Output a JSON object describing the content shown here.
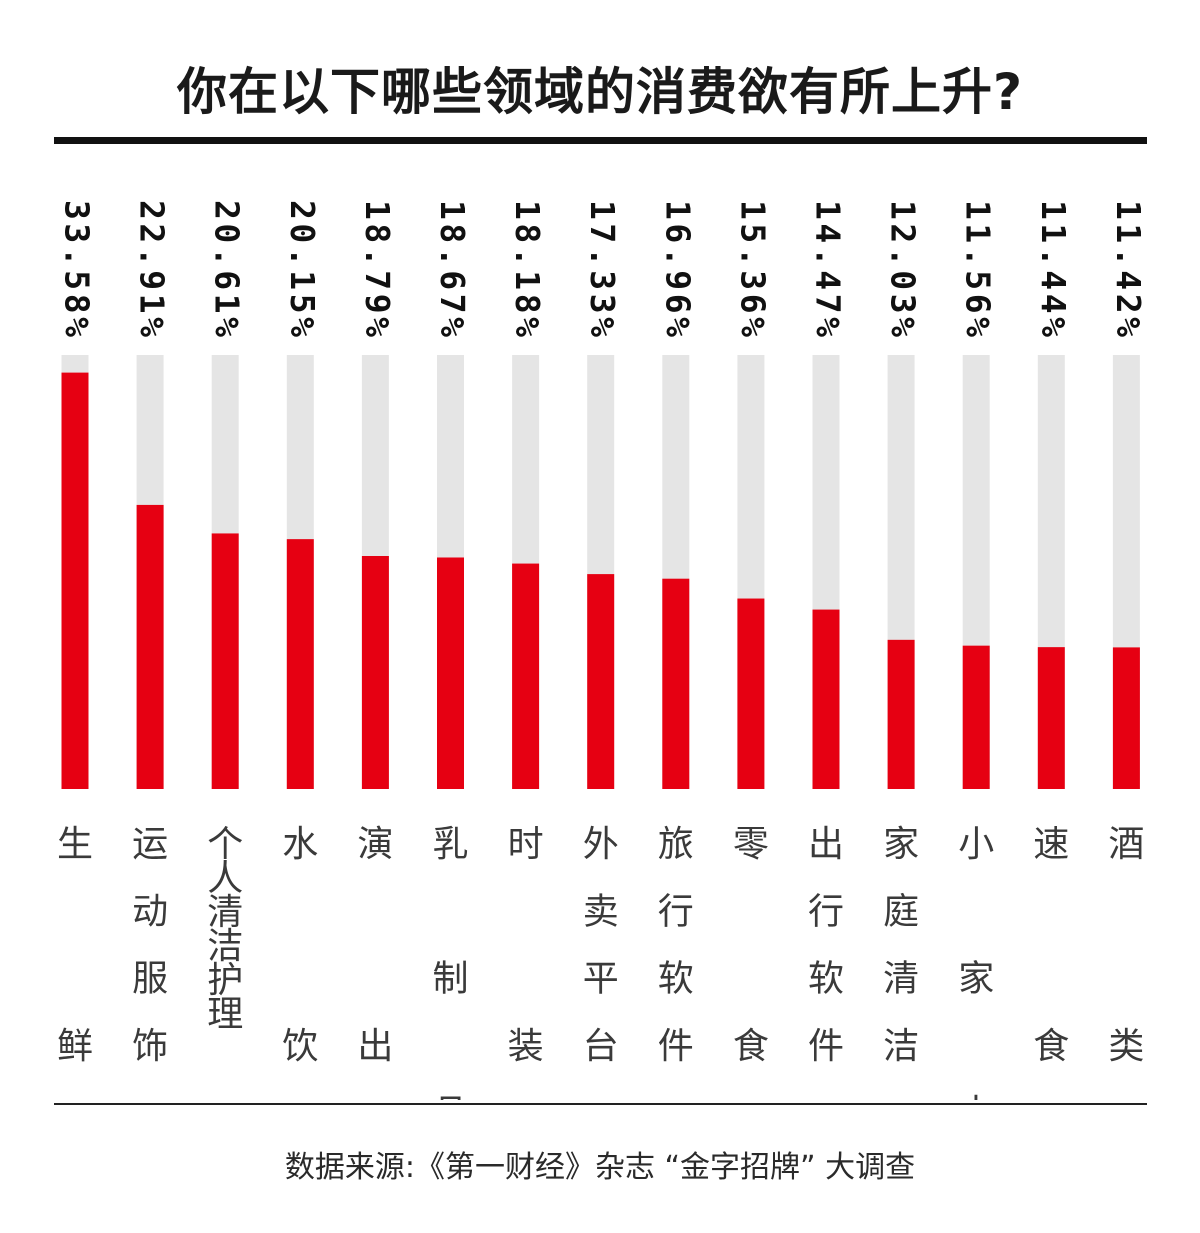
{
  "title": "你在以下哪些领域的消费欲有所上升?",
  "source": "数据来源:《第一财经》杂志 “金字招牌” 大调查",
  "colors": {
    "bar": "#e60012",
    "track": "#e5e5e5",
    "rule": "#111111"
  },
  "chart_data": {
    "type": "bar",
    "orientation": "vertical",
    "title": "你在以下哪些领域的消费欲有所上升?",
    "unit": "%",
    "ylim": [
      0,
      35
    ],
    "grid": false,
    "legend": "none",
    "categories": [
      "生鲜",
      "运动服饰",
      "个人清洁护理",
      "水饮",
      "演出",
      "乳制品",
      "时装",
      "外卖平台",
      "旅行软件",
      "零食",
      "出行软件",
      "家庭清洁",
      "小家电",
      "速食",
      "酒类"
    ],
    "category_lines": [
      [
        "生",
        "",
        "",
        "鲜"
      ],
      [
        "运",
        "动",
        "服",
        "饰"
      ],
      [
        "个",
        "人",
        "清",
        "洁",
        "护",
        "理"
      ],
      [
        "水",
        "",
        "",
        "饮"
      ],
      [
        "演",
        "",
        "",
        "出"
      ],
      [
        "乳",
        "",
        "制",
        "",
        "品"
      ],
      [
        "时",
        "",
        "",
        "装"
      ],
      [
        "外",
        "卖",
        "平",
        "台"
      ],
      [
        "旅",
        "行",
        "软",
        "件"
      ],
      [
        "零",
        "",
        "",
        "食"
      ],
      [
        "出",
        "行",
        "软",
        "件"
      ],
      [
        "家",
        "庭",
        "清",
        "洁"
      ],
      [
        "小",
        "",
        "家",
        "",
        "电"
      ],
      [
        "速",
        "",
        "",
        "食"
      ],
      [
        "酒",
        "",
        "",
        "类"
      ]
    ],
    "values": [
      33.58,
      22.91,
      20.61,
      20.15,
      18.79,
      18.67,
      18.18,
      17.33,
      16.96,
      15.36,
      14.47,
      12.03,
      11.56,
      11.44,
      11.42
    ],
    "value_labels": [
      "33.58%",
      "22.91%",
      "20.61%",
      "20.15%",
      "18.79%",
      "18.67%",
      "18.18%",
      "17.33%",
      "16.96%",
      "15.36%",
      "14.47%",
      "12.03%",
      "11.56%",
      "11.44%",
      "11.42%"
    ]
  }
}
